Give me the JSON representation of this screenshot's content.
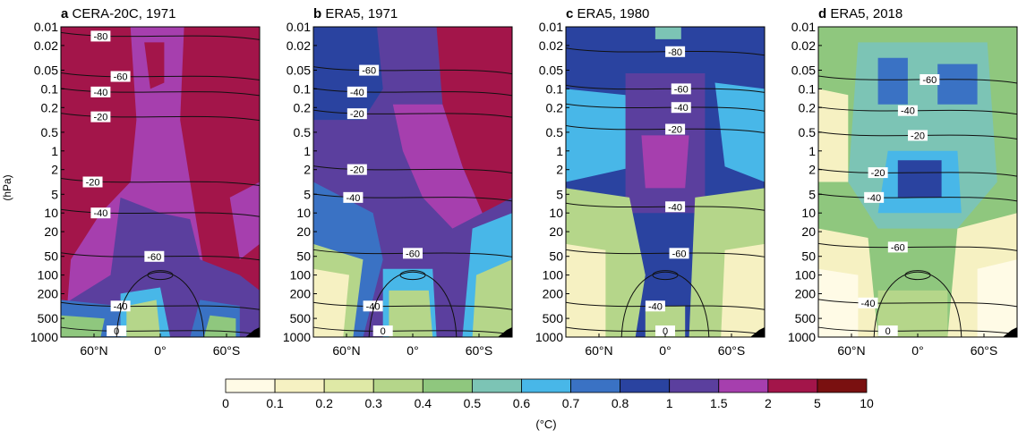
{
  "chart_data": {
    "type": "heatmap",
    "y_axis": {
      "label": "(hPa)",
      "ticks": [
        "0.01",
        "0.02",
        "0.05",
        "0.1",
        "0.2",
        "0.5",
        "1",
        "2",
        "5",
        "10",
        "20",
        "50",
        "100",
        "200",
        "500",
        "1000"
      ],
      "scale": "log",
      "range": [
        0.01,
        1000
      ]
    },
    "x_axis": {
      "ticks": [
        "60°N",
        "0°",
        "60°S"
      ],
      "range": [
        "90°N",
        "90°S"
      ]
    },
    "contour_labels_note": "black contour lines with inline labels",
    "panels": [
      {
        "letter": "a",
        "title": "CERA-20C, 1971",
        "contour_labels": [
          "-80",
          "-60",
          "-40",
          "-20",
          "-20",
          "-40",
          "-60",
          "-40",
          "0"
        ]
      },
      {
        "letter": "b",
        "title": "ERA5, 1971",
        "contour_labels": [
          "-60",
          "-40",
          "-20",
          "-20",
          "-40",
          "-60",
          "-40",
          "0"
        ]
      },
      {
        "letter": "c",
        "title": "ERA5, 1980",
        "contour_labels": [
          "-80",
          "-60",
          "-40",
          "-20",
          "-40",
          "-60",
          "-40",
          "0"
        ]
      },
      {
        "letter": "d",
        "title": "ERA5, 2018",
        "contour_labels": [
          "-60",
          "-40",
          "-20",
          "-20",
          "-40",
          "-60",
          "-40",
          "0"
        ]
      }
    ],
    "colorbar": {
      "ticks": [
        "0",
        "0.1",
        "0.2",
        "0.3",
        "0.4",
        "0.5",
        "0.6",
        "0.7",
        "0.8",
        "1",
        "1.5",
        "2",
        "5",
        "10"
      ],
      "colors": [
        "#fffbe6",
        "#f6f1c2",
        "#dfe9a6",
        "#b5d68a",
        "#8fc77e",
        "#7cc4b5",
        "#48b7e8",
        "#3a72c4",
        "#2a43a0",
        "#5b3f9e",
        "#a63fae",
        "#a3154a",
        "#7a1010"
      ],
      "unit": "(°C)"
    }
  }
}
